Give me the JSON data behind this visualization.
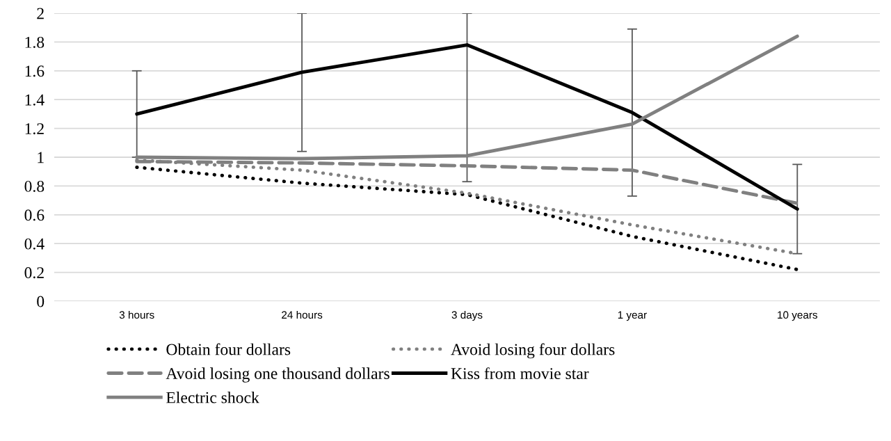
{
  "chart_data": {
    "type": "line",
    "categories": [
      "3 hours",
      "24 hours",
      "3 days",
      "1 year",
      "10 years"
    ],
    "series": [
      {
        "name": "Obtain four dollars",
        "color": "#000000",
        "line_style": "dotted",
        "values": [
          0.93,
          0.82,
          0.74,
          0.45,
          0.22
        ]
      },
      {
        "name": "Avoid losing four dollars",
        "color": "#808080",
        "line_style": "dotted",
        "values": [
          0.98,
          0.91,
          0.75,
          0.53,
          0.33
        ]
      },
      {
        "name": "Avoid losing one thousand dollars",
        "color": "#808080",
        "line_style": "dashed",
        "values": [
          0.97,
          0.96,
          0.94,
          0.91,
          0.68
        ]
      },
      {
        "name": "Kiss from movie star",
        "color": "#000000",
        "line_style": "solid",
        "values": [
          1.3,
          1.59,
          1.78,
          1.31,
          0.64
        ],
        "errors": [
          [
            1.0,
            1.6
          ],
          [
            1.04,
            2
          ],
          [
            0.83,
            2
          ],
          [
            0.73,
            1.89
          ],
          [
            0.33,
            0.95
          ]
        ]
      },
      {
        "name": "Electric shock",
        "color": "#808080",
        "line_style": "solid",
        "values": [
          1.0,
          0.99,
          1.01,
          1.23,
          1.84
        ]
      }
    ],
    "ylim": [
      0,
      2
    ],
    "yticks": [
      0,
      {
        "value": 0.2,
        "label": "0.2"
      },
      {
        "value": 0.4,
        "label": "0.4"
      },
      {
        "value": 0.6,
        "label": "0.6"
      },
      {
        "value": 0.8,
        "label": "0.8"
      },
      1,
      {
        "value": 1.2,
        "label": "1.2"
      },
      {
        "value": 1.4,
        "label": "1.4"
      },
      {
        "value": 1.6,
        "label": "1.6"
      },
      {
        "value": 1.8,
        "label": "1.8"
      },
      2
    ],
    "grid": "y",
    "legend": "bottom",
    "marker": "none"
  }
}
